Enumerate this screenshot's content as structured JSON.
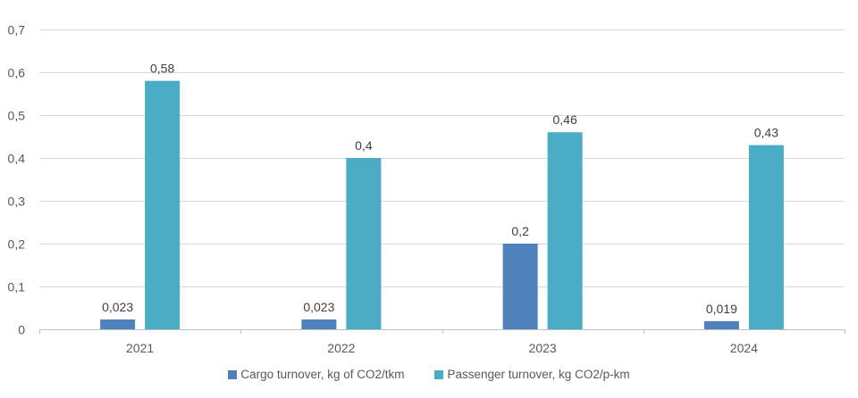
{
  "chart_data": {
    "type": "bar",
    "title": "",
    "xlabel": "",
    "ylabel": "",
    "categories": [
      "2021",
      "2022",
      "2023",
      "2024"
    ],
    "series": [
      {
        "name": "Cargo turnover, kg of CO2/tkm",
        "color": "#4F81BD",
        "values": [
          0.023,
          0.023,
          0.2,
          0.019
        ],
        "labels": [
          "0,023",
          "0,023",
          "0,2",
          "0,019"
        ]
      },
      {
        "name": "Passenger turnover, kg CO2/p-km",
        "color": "#4BACC6",
        "values": [
          0.58,
          0.4,
          0.46,
          0.43
        ],
        "labels": [
          "0,58",
          "0,4",
          "0,46",
          "0,43"
        ]
      }
    ],
    "ylim": [
      0,
      0.7
    ],
    "yticks": [
      0,
      0.1,
      0.2,
      0.3,
      0.4,
      0.5,
      0.6,
      0.7
    ],
    "ytick_labels": [
      "0",
      "0,1",
      "0,2",
      "0,3",
      "0,4",
      "0,5",
      "0,6",
      "0,7"
    ],
    "grid": true,
    "legend_position": "bottom"
  }
}
